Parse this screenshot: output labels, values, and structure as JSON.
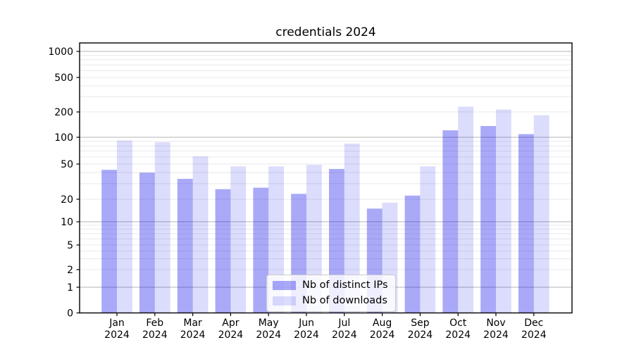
{
  "chart_data": {
    "type": "bar",
    "title": "credentials 2024",
    "categories": [
      "Jan 2024",
      "Feb 2024",
      "Mar 2024",
      "Apr 2024",
      "May 2024",
      "Jun 2024",
      "Jul 2024",
      "Aug 2024",
      "Sep 2024",
      "Oct 2024",
      "Nov 2024",
      "Dec 2024"
    ],
    "series": [
      {
        "name": "Nb of distinct IPs",
        "color": "#0a0aeb59",
        "values": [
          43,
          40,
          34,
          26,
          27,
          23,
          44,
          15,
          22,
          121,
          136,
          109
        ]
      },
      {
        "name": "Nb of downloads",
        "color": "#0a0aeb24",
        "values": [
          92,
          88,
          61,
          47,
          47,
          49,
          85,
          18,
          47,
          230,
          214,
          183
        ]
      }
    ],
    "xlabel": "",
    "ylabel": "",
    "yscale": "symlog",
    "yticks": [
      0,
      1,
      2,
      5,
      10,
      20,
      50,
      100,
      200,
      500,
      1000
    ],
    "ylim": [
      0,
      1400
    ],
    "grid": "horizontal, minor light gray, major gray at powers of 10",
    "legend_position": "lower center inside plot",
    "colors": {
      "bar_dark": "#a9a9fa",
      "bar_light": "#dcdcfa",
      "grid_minor": "#e9e9e9",
      "grid_major": "#b3b3b3",
      "spine": "#000000"
    }
  }
}
